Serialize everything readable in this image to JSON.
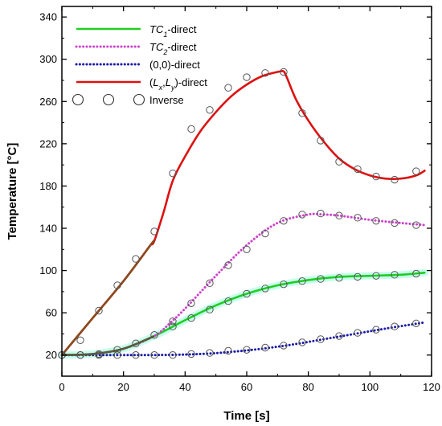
{
  "chart_data": {
    "type": "line",
    "xlabel": "Time [s]",
    "ylabel": "Temperature [°C]",
    "xlim": [
      0,
      120
    ],
    "ylim": [
      0,
      350
    ],
    "xticks": [
      0,
      20,
      40,
      60,
      80,
      100,
      120
    ],
    "yticks": [
      20,
      60,
      100,
      140,
      180,
      220,
      260,
      300,
      340
    ],
    "grid": false,
    "legend_position": "top-left",
    "series": [
      {
        "name_parts": [
          [
            "TC",
            "normal"
          ],
          [
            "1",
            "sub"
          ],
          [
            "-direct",
            "normal"
          ]
        ],
        "color": "#22cc22",
        "style": "solid",
        "halo": true,
        "x": [
          0,
          10,
          20,
          30,
          40,
          50,
          60,
          70,
          80,
          90,
          100,
          110,
          118
        ],
        "y": [
          20,
          21,
          26,
          38,
          53,
          67,
          78,
          86,
          91,
          94,
          95,
          96,
          98
        ]
      },
      {
        "name_parts": [
          [
            "TC",
            "normal"
          ],
          [
            "2",
            "sub"
          ],
          [
            "-direct",
            "normal"
          ]
        ],
        "color": "#cc44cc",
        "style": "dotted",
        "x": [
          0,
          10,
          20,
          30,
          35,
          40,
          50,
          60,
          70,
          80,
          85,
          90,
          100,
          110,
          118
        ],
        "y": [
          20,
          21,
          26,
          38,
          50,
          64,
          95,
          124,
          145,
          153,
          153,
          152,
          148,
          145,
          143
        ]
      },
      {
        "name_parts": [
          [
            "(0,0)-direct",
            "normal"
          ]
        ],
        "color": "#1a1aaa",
        "style": "dotted",
        "x": [
          0,
          30,
          45,
          55,
          65,
          75,
          85,
          95,
          105,
          118
        ],
        "y": [
          20,
          20,
          21,
          23,
          26,
          30,
          35,
          40,
          45,
          51
        ]
      },
      {
        "name_parts": [
          [
            "(",
            "normal"
          ],
          [
            "L",
            "normal"
          ],
          [
            "x",
            "sub"
          ],
          [
            ",",
            "normal"
          ],
          [
            "L",
            "normal"
          ],
          [
            "y",
            "sub"
          ],
          [
            ")-direct",
            "normal"
          ]
        ],
        "color": "#dd1111",
        "style": "solid",
        "x": [
          0,
          10,
          20,
          29,
          30,
          33,
          36,
          40,
          45,
          50,
          55,
          60,
          65,
          70,
          72,
          73,
          76,
          80,
          85,
          90,
          95,
          100,
          105,
          110,
          115,
          118
        ],
        "y": [
          20,
          55,
          90,
          125,
          128,
          155,
          185,
          208,
          232,
          250,
          265,
          276,
          284,
          288,
          289,
          283,
          262,
          242,
          222,
          206,
          196,
          190,
          187,
          187,
          190,
          195
        ]
      }
    ],
    "markers": {
      "name": "Inverse",
      "symbol": "open-circle",
      "series": [
        {
          "x": [
            0,
            6,
            12,
            18,
            24,
            30,
            36,
            42,
            48,
            54,
            60,
            66,
            72,
            78,
            84,
            90,
            96,
            102,
            108,
            115
          ],
          "y": [
            20,
            20,
            21,
            25,
            31,
            39,
            47,
            55,
            63,
            71,
            78,
            83,
            87,
            90,
            92,
            93,
            94,
            95,
            96,
            97
          ]
        },
        {
          "x": [
            36,
            42,
            48,
            54,
            60,
            66,
            72,
            78,
            84,
            90,
            96,
            102,
            108,
            115
          ],
          "y": [
            52,
            69,
            88,
            105,
            120,
            135,
            147,
            153,
            154,
            152,
            150,
            147,
            145,
            143
          ]
        },
        {
          "x": [
            0,
            6,
            12,
            18,
            24,
            30,
            36,
            42,
            48,
            54,
            60,
            66,
            72,
            78,
            84,
            90,
            96,
            102,
            108,
            115
          ],
          "y": [
            20,
            20,
            20,
            20,
            20,
            20,
            20,
            21,
            22,
            24,
            25,
            27,
            29,
            32,
            35,
            38,
            41,
            44,
            47,
            50
          ]
        },
        {
          "x": [
            0,
            6,
            12,
            18,
            24,
            30,
            36,
            42,
            48,
            54,
            60,
            66,
            72,
            78,
            84,
            90,
            96,
            102,
            108,
            115
          ],
          "y": [
            20,
            34,
            62,
            86,
            111,
            137,
            192,
            234,
            252,
            273,
            283,
            287,
            288,
            249,
            223,
            203,
            196,
            189,
            186,
            194
          ]
        }
      ]
    }
  }
}
